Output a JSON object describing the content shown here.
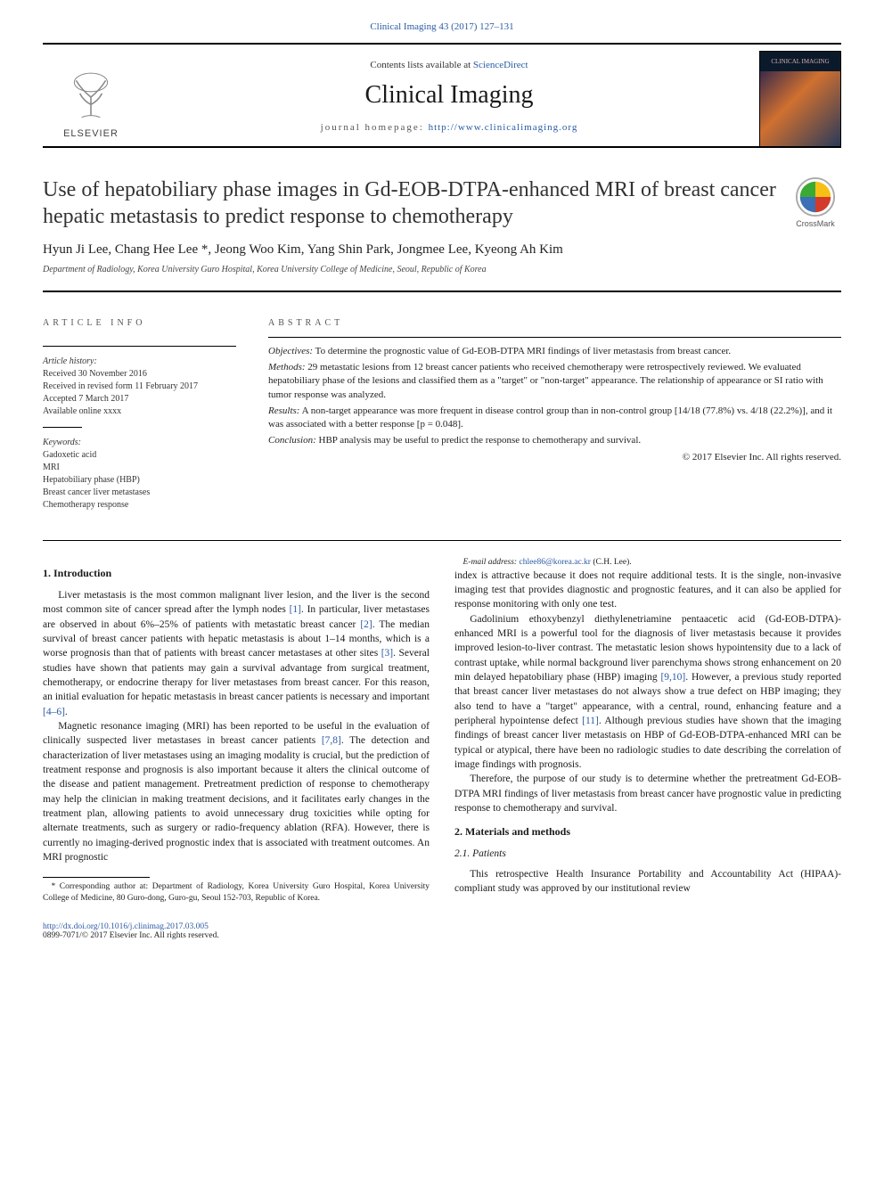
{
  "header_ref": {
    "text": "Clinical Imaging 43 (2017) 127–131",
    "href": "#"
  },
  "masthead": {
    "contents_prefix": "Contents lists available at ",
    "contents_link": "ScienceDirect",
    "journal_name": "Clinical Imaging",
    "homepage_prefix": "journal homepage: ",
    "homepage_link": "http://www.clinicalimaging.org",
    "publisher_label": "ELSEVIER",
    "cover_title": "CLINICAL IMAGING"
  },
  "colors": {
    "link": "#2a5aa5",
    "text": "#1a1a1a",
    "muted": "#555",
    "rule": "#000000",
    "elsevier_orange": "#e9711c",
    "crossmark_yellow": "#f6c015",
    "crossmark_red": "#d23b2a",
    "crossmark_blue": "#3b6fb6",
    "crossmark_green": "#3aaa35"
  },
  "title": "Use of hepatobiliary phase images in Gd-EOB-DTPA-enhanced MRI of breast cancer hepatic metastasis to predict response to chemotherapy",
  "crossmark_label": "CrossMark",
  "authors_line": "Hyun Ji Lee, Chang Hee Lee *, Jeong Woo Kim, Yang Shin Park, Jongmee Lee, Kyeong Ah Kim",
  "affiliation": "Department of Radiology, Korea University Guro Hospital, Korea University College of Medicine, Seoul, Republic of Korea",
  "article_info": {
    "heading": "ARTICLE INFO",
    "history_label": "Article history:",
    "history": [
      "Received 30 November 2016",
      "Received in revised form 11 February 2017",
      "Accepted 7 March 2017",
      "Available online xxxx"
    ],
    "keywords_label": "Keywords:",
    "keywords": [
      "Gadoxetic acid",
      "MRI",
      "Hepatobiliary phase (HBP)",
      "Breast cancer liver metastases",
      "Chemotherapy response"
    ]
  },
  "abstract": {
    "heading": "ABSTRACT",
    "objectives_label": "Objectives:",
    "objectives": "To determine the prognostic value of Gd-EOB-DTPA MRI findings of liver metastasis from breast cancer.",
    "methods_label": "Methods:",
    "methods": "29 metastatic lesions from 12 breast cancer patients who received chemotherapy were retrospectively reviewed. We evaluated hepatobiliary phase of the lesions and classified them as a \"target\" or \"non-target\" appearance. The relationship of appearance or SI ratio with tumor response was analyzed.",
    "results_label": "Results:",
    "results": "A non-target appearance was more frequent in disease control group than in non-control group [14/18 (77.8%) vs. 4/18 (22.2%)], and it was associated with a better response [p = 0.048].",
    "conclusion_label": "Conclusion:",
    "conclusion": "HBP analysis may be useful to predict the response to chemotherapy and survival.",
    "copyright": "© 2017 Elsevier Inc. All rights reserved."
  },
  "body": {
    "intro_heading": "1. Introduction",
    "intro_p1": "Liver metastasis is the most common malignant liver lesion, and the liver is the second most common site of cancer spread after the lymph nodes [1]. In particular, liver metastases are observed in about 6%–25% of patients with metastatic breast cancer [2]. The median survival of breast cancer patients with hepatic metastasis is about 1–14 months, which is a worse prognosis than that of patients with breast cancer metastases at other sites [3]. Several studies have shown that patients may gain a survival advantage from surgical treatment, chemotherapy, or endocrine therapy for liver metastases from breast cancer. For this reason, an initial evaluation for hepatic metastasis in breast cancer patients is necessary and important [4–6].",
    "intro_p2": "Magnetic resonance imaging (MRI) has been reported to be useful in the evaluation of clinically suspected liver metastases in breast cancer patients [7,8]. The detection and characterization of liver metastases using an imaging modality is crucial, but the prediction of treatment response and prognosis is also important because it alters the clinical outcome of the disease and patient management. Pretreatment prediction of response to chemotherapy may help the clinician in making treatment decisions, and it facilitates early changes in the treatment plan, allowing patients to avoid unnecessary drug toxicities while opting for alternate treatments, such as surgery or radio-frequency ablation (RFA). However, there is currently no imaging-derived prognostic index that is associated with treatment outcomes. An MRI prognostic",
    "intro_p3": "index is attractive because it does not require additional tests. It is the single, non-invasive imaging test that provides diagnostic and prognostic features, and it can also be applied for response monitoring with only one test.",
    "intro_p4": "Gadolinium ethoxybenzyl diethylenetriamine pentaacetic acid (Gd-EOB-DTPA)-enhanced MRI is a powerful tool for the diagnosis of liver metastasis because it provides improved lesion-to-liver contrast. The metastatic lesion shows hypointensity due to a lack of contrast uptake, while normal background liver parenchyma shows strong enhancement on 20 min delayed hepatobiliary phase (HBP) imaging [9,10]. However, a previous study reported that breast cancer liver metastases do not always show a true defect on HBP imaging; they also tend to have a \"target\" appearance, with a central, round, enhancing feature and a peripheral hypointense defect [11]. Although previous studies have shown that the imaging findings of breast cancer liver metastasis on HBP of Gd-EOB-DTPA-enhanced MRI can be typical or atypical, there have been no radiologic studies to date describing the correlation of image findings with prognosis.",
    "intro_p5": "Therefore, the purpose of our study is to determine whether the pretreatment Gd-EOB-DTPA MRI findings of liver metastasis from breast cancer have prognostic value in predicting response to chemotherapy and survival.",
    "mm_heading": "2. Materials and methods",
    "patients_heading": "2.1. Patients",
    "patients_p1": "This retrospective Health Insurance Portability and Accountability Act (HIPAA)-compliant study was approved by our institutional review"
  },
  "footnote": {
    "corr": "* Corresponding author at: Department of Radiology, Korea University Guro Hospital, Korea University College of Medicine, 80 Guro-dong, Guro-gu, Seoul 152-703, Republic of Korea.",
    "email_label": "E-mail address:",
    "email": "chlee86@korea.ac.kr",
    "email_attr": " (C.H. Lee)."
  },
  "footer": {
    "doi": "http://dx.doi.org/10.1016/j.clinimag.2017.03.005",
    "issn_copy": "0899-7071/© 2017 Elsevier Inc. All rights reserved."
  }
}
